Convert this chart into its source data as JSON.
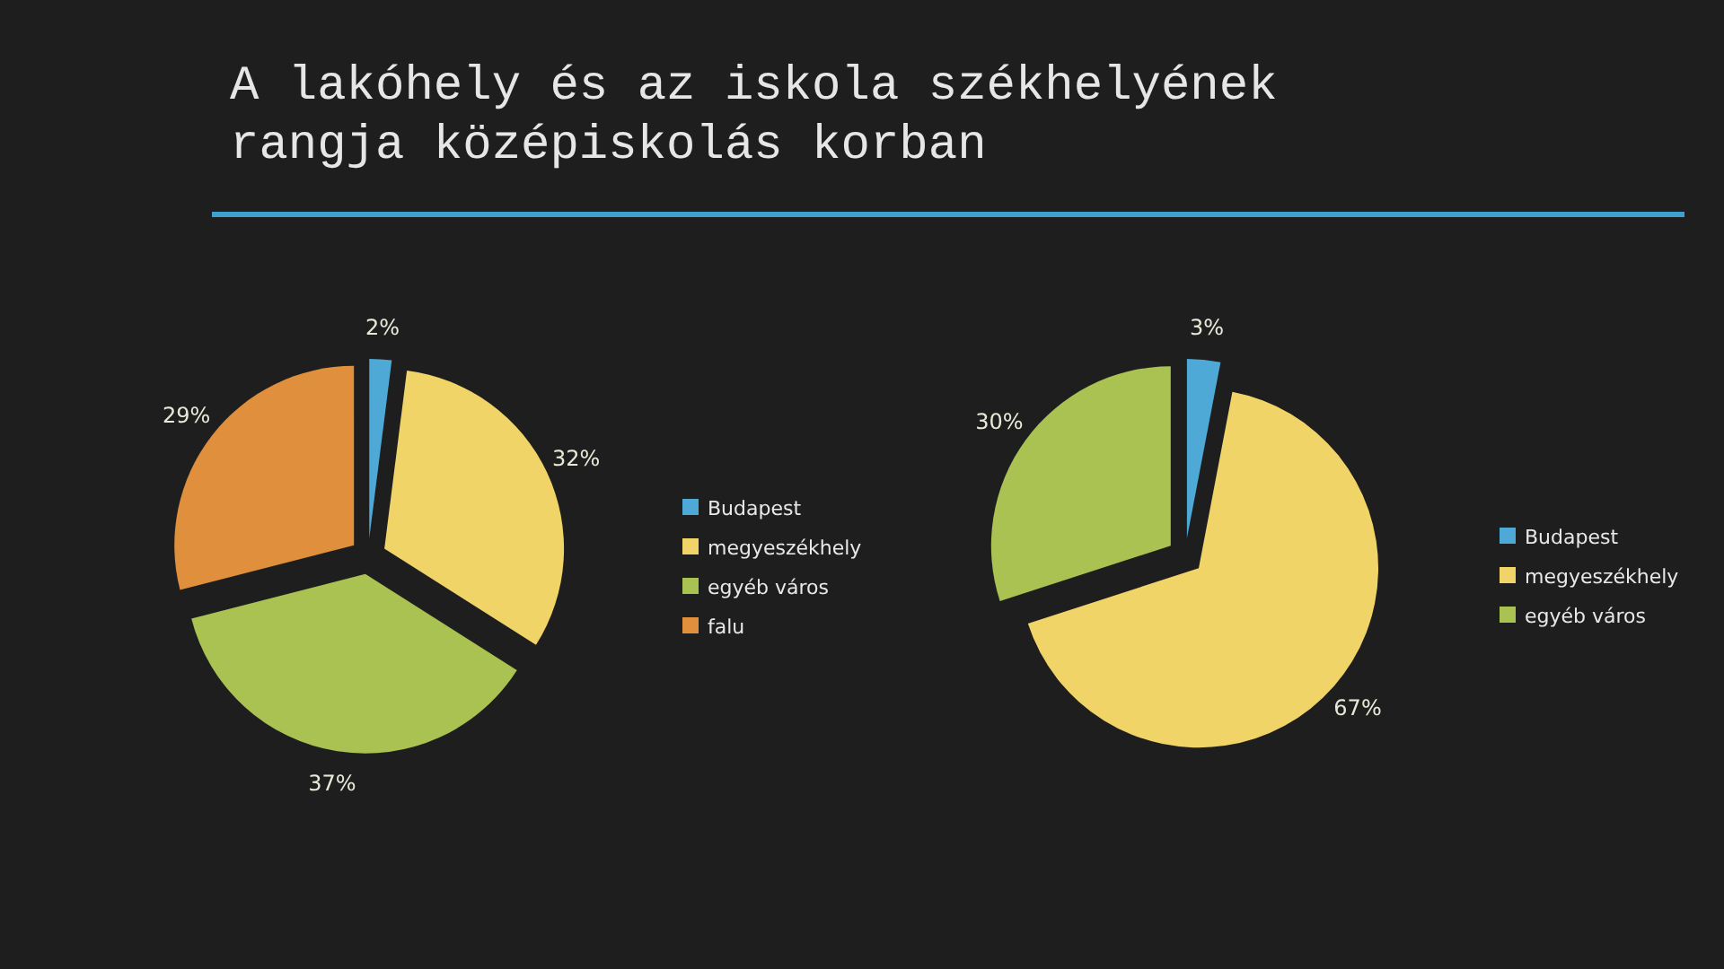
{
  "chart_data": [
    {
      "type": "pie",
      "title": "A lakóhely és az iskola székhelyének rangja középiskolás korban",
      "categories": [
        "Budapest",
        "megyeszékhely",
        "egyéb város",
        "falu"
      ],
      "values": [
        2,
        32,
        37,
        29
      ],
      "value_labels": [
        "2%",
        "32%",
        "37%",
        "29%"
      ],
      "colors": [
        "#4fa9d6",
        "#f1d468",
        "#a9c251",
        "#e08f3c"
      ],
      "legend": "right"
    },
    {
      "type": "pie",
      "categories": [
        "Budapest",
        "megyeszékhely",
        "egyéb város"
      ],
      "values": [
        3,
        67,
        30
      ],
      "value_labels": [
        "3%",
        "67%",
        "30%"
      ],
      "colors": [
        "#4fa9d6",
        "#f1d468",
        "#a9c251"
      ],
      "legend": "right"
    }
  ]
}
